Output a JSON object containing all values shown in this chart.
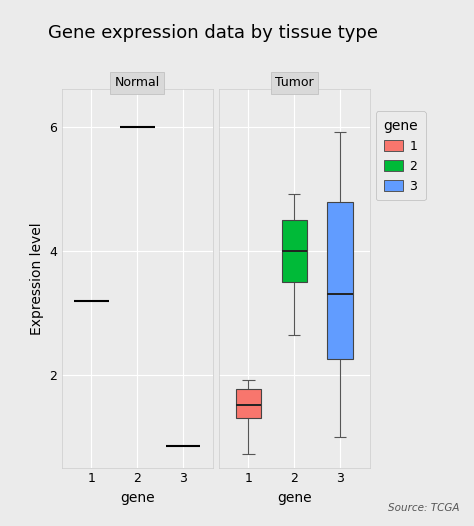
{
  "title": "Gene expression data by tissue type",
  "xlabel": "gene",
  "ylabel": "Expression level",
  "source": "Source: TCGA",
  "gene_colors": {
    "1": "#F8766D",
    "2": "#00BA38",
    "3": "#619CFF"
  },
  "normal": {
    "1": {
      "value": 3.2
    },
    "2": {
      "value": 6.0
    },
    "3": {
      "value": 0.85
    }
  },
  "tumor": {
    "1": {
      "whisker_low": 0.72,
      "q1": 1.3,
      "median": 1.52,
      "q3": 1.78,
      "whisker_high": 1.92
    },
    "2": {
      "whisker_low": 2.65,
      "q1": 3.5,
      "median": 4.0,
      "q3": 4.5,
      "whisker_high": 4.92
    },
    "3": {
      "whisker_low": 1.0,
      "q1": 2.25,
      "median": 3.3,
      "q3": 4.78,
      "whisker_high": 5.92
    }
  },
  "ylim": [
    0.5,
    6.6
  ],
  "yticks": [
    2,
    4,
    6
  ],
  "xticks": [
    1,
    2,
    3
  ],
  "bg_color": "#EBEBEB",
  "panel_header_color": "#D9D9D9",
  "plot_bg_color": "#EBEBEB",
  "legend_title": "gene",
  "legend_items": [
    "1",
    "2",
    "3"
  ],
  "box_width": 0.55,
  "hline_half": 0.38,
  "grid_color": "#FFFFFF",
  "title_fontsize": 13,
  "axis_label_fontsize": 10,
  "tick_fontsize": 9,
  "legend_fontsize": 9,
  "panel_label_fontsize": 9
}
